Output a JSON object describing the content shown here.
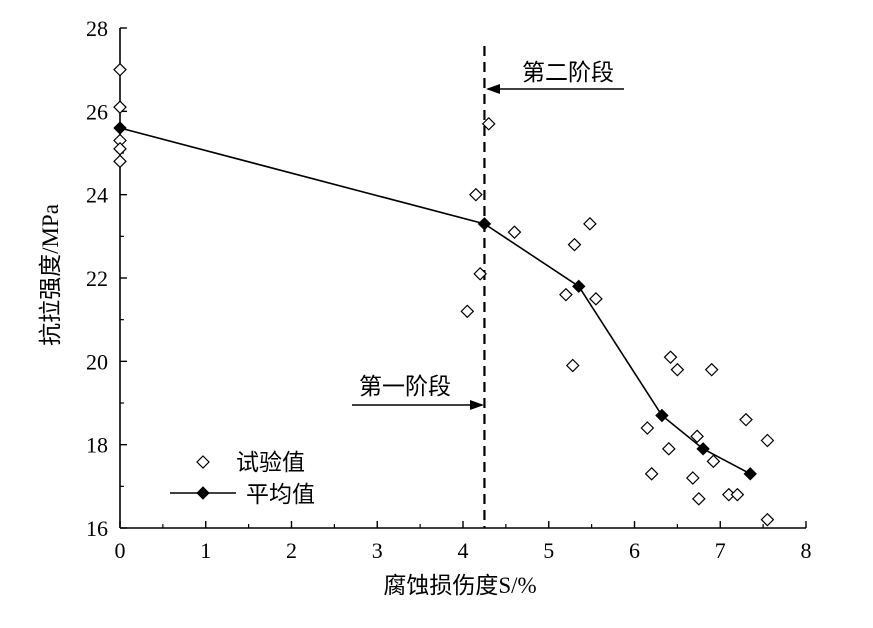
{
  "chart_data": {
    "type": "scatter",
    "xlabel": "腐蚀损伤度S/%",
    "ylabel": "抗拉强度/MPa",
    "xlim": [
      0,
      8
    ],
    "ylim": [
      16,
      28
    ],
    "x_ticks": [
      "0",
      "1",
      "2",
      "3",
      "4",
      "5",
      "6",
      "7",
      "8"
    ],
    "y_ticks": [
      "16",
      "18",
      "20",
      "22",
      "24",
      "26",
      "28"
    ],
    "grid": false,
    "legend_position": "bottom-left",
    "series": [
      {
        "name": "试验值",
        "kind": "scatter",
        "marker": "open-diamond",
        "points": [
          [
            0,
            27.0
          ],
          [
            0,
            26.1
          ],
          [
            0,
            25.3
          ],
          [
            0,
            25.1
          ],
          [
            0,
            24.8
          ],
          [
            4.05,
            21.2
          ],
          [
            4.15,
            24.0
          ],
          [
            4.2,
            22.1
          ],
          [
            4.3,
            25.7
          ],
          [
            4.6,
            23.1
          ],
          [
            5.2,
            21.6
          ],
          [
            5.28,
            19.9
          ],
          [
            5.3,
            22.8
          ],
          [
            5.48,
            23.3
          ],
          [
            5.55,
            21.5
          ],
          [
            6.15,
            18.4
          ],
          [
            6.2,
            17.3
          ],
          [
            6.4,
            17.9
          ],
          [
            6.42,
            20.1
          ],
          [
            6.5,
            19.8
          ],
          [
            6.68,
            17.2
          ],
          [
            6.73,
            18.2
          ],
          [
            6.75,
            16.7
          ],
          [
            6.9,
            19.8
          ],
          [
            6.92,
            17.6
          ],
          [
            7.1,
            16.8
          ],
          [
            7.2,
            16.8
          ],
          [
            7.3,
            18.6
          ],
          [
            7.55,
            18.1
          ],
          [
            7.55,
            16.2
          ]
        ]
      },
      {
        "name": "平均值",
        "kind": "line",
        "marker": "filled-diamond",
        "points": [
          [
            0,
            25.6
          ],
          [
            4.25,
            23.3
          ],
          [
            5.35,
            21.8
          ],
          [
            6.32,
            18.7
          ],
          [
            6.8,
            17.9
          ],
          [
            7.35,
            17.3
          ]
        ]
      }
    ],
    "annotations": {
      "divider_x": 4.25,
      "stage_two": "第二阶段",
      "stage_one": "第一阶段"
    }
  }
}
